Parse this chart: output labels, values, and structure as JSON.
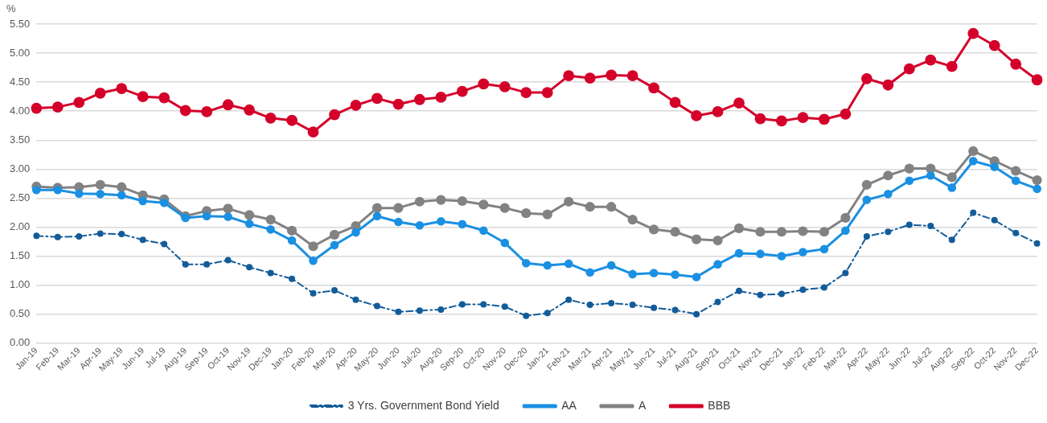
{
  "chart_data": {
    "type": "line",
    "ylabel": "%",
    "categories": [
      "Jan-19",
      "Feb-19",
      "Mar-19",
      "Apr-19",
      "May-19",
      "Jun-19",
      "Jul-19",
      "Aug-19",
      "Sep-19",
      "Oct-19",
      "Nov-19",
      "Dec-19",
      "Jan-20",
      "Feb-20",
      "Mar-20",
      "Apr-20",
      "May-20",
      "Jun-20",
      "Jul-20",
      "Aug-20",
      "Sep-20",
      "Oct-20",
      "Nov-20",
      "Dec-20",
      "Jan-21",
      "Feb-21",
      "Mar-21",
      "Apr-21",
      "May-21",
      "Jun-21",
      "Jul-21",
      "Aug-21",
      "Sep-21",
      "Oct-21",
      "Nov-21",
      "Dec-21",
      "Jan-22",
      "Feb-22",
      "Mar-22",
      "Apr-22",
      "May-22",
      "Jun-22",
      "Jul-22",
      "Aug-22",
      "Sep-22",
      "Oct-22",
      "Nov-22",
      "Dec-22"
    ],
    "series": [
      {
        "name": "3 Yrs. Government Bond Yield",
        "color": "#135c99",
        "line_style": "dashed",
        "values": [
          1.85,
          1.83,
          1.84,
          1.89,
          1.88,
          1.78,
          1.71,
          1.36,
          1.36,
          1.43,
          1.31,
          1.21,
          1.11,
          0.86,
          0.91,
          0.75,
          0.64,
          0.54,
          0.56,
          0.58,
          0.67,
          0.67,
          0.63,
          0.47,
          0.52,
          0.75,
          0.66,
          0.69,
          0.66,
          0.61,
          0.57,
          0.5,
          0.71,
          0.9,
          0.83,
          0.85,
          0.92,
          0.96,
          1.21,
          1.84,
          1.92,
          2.04,
          2.02,
          1.78,
          2.25,
          2.12,
          1.9,
          1.72
        ]
      },
      {
        "name": "AA",
        "color": "#1a90e2",
        "line_style": "solid",
        "values": [
          2.64,
          2.64,
          2.58,
          2.57,
          2.55,
          2.45,
          2.42,
          2.16,
          2.19,
          2.18,
          2.06,
          1.96,
          1.77,
          1.42,
          1.69,
          1.91,
          2.19,
          2.09,
          2.03,
          2.1,
          2.05,
          1.94,
          1.73,
          1.38,
          1.34,
          1.37,
          1.22,
          1.34,
          1.19,
          1.21,
          1.18,
          1.14,
          1.36,
          1.55,
          1.54,
          1.5,
          1.57,
          1.62,
          1.94,
          2.47,
          2.57,
          2.8,
          2.89,
          2.68,
          3.14,
          3.04,
          2.8,
          2.66
        ]
      },
      {
        "name": "A",
        "color": "#828282",
        "line_style": "solid",
        "values": [
          2.7,
          2.68,
          2.69,
          2.73,
          2.69,
          2.55,
          2.48,
          2.19,
          2.28,
          2.32,
          2.21,
          2.13,
          1.94,
          1.67,
          1.87,
          2.02,
          2.33,
          2.33,
          2.44,
          2.47,
          2.45,
          2.39,
          2.33,
          2.24,
          2.22,
          2.44,
          2.35,
          2.35,
          2.13,
          1.96,
          1.92,
          1.79,
          1.77,
          1.98,
          1.92,
          1.92,
          1.93,
          1.92,
          2.16,
          2.73,
          2.89,
          3.01,
          3.01,
          2.86,
          3.31,
          3.14,
          2.97,
          2.81
        ]
      },
      {
        "name": "BBB",
        "color": "#d4002a",
        "line_style": "solid",
        "values": [
          4.05,
          4.07,
          4.15,
          4.31,
          4.39,
          4.25,
          4.23,
          4.01,
          3.99,
          4.11,
          4.02,
          3.88,
          3.84,
          3.64,
          3.94,
          4.1,
          4.22,
          4.12,
          4.2,
          4.24,
          4.34,
          4.47,
          4.42,
          4.32,
          4.32,
          4.61,
          4.57,
          4.62,
          4.61,
          4.4,
          4.15,
          3.92,
          3.99,
          4.14,
          3.87,
          3.83,
          3.89,
          3.86,
          3.95,
          4.56,
          4.45,
          4.73,
          4.88,
          4.77,
          5.34,
          5.13,
          4.81,
          4.54
        ]
      }
    ],
    "ylim": [
      0,
      5.5
    ],
    "yticks": [
      {
        "value": 0,
        "label": "0.00"
      },
      {
        "value": 0.5,
        "label": "0.50"
      },
      {
        "value": 1,
        "label": "1.00"
      },
      {
        "value": 1.5,
        "label": "1.50"
      },
      {
        "value": 2,
        "label": "2.00"
      },
      {
        "value": 2.5,
        "label": "2.50"
      },
      {
        "value": 3,
        "label": "3.00"
      },
      {
        "value": 3.5,
        "label": "3.50"
      },
      {
        "value": 4,
        "label": "4.00"
      },
      {
        "value": 4.5,
        "label": "4.50"
      },
      {
        "value": 5,
        "label": "5.00"
      },
      {
        "value": 5.5,
        "label": "5.50"
      }
    ],
    "grid": "y",
    "legend": "bottom",
    "marker": "circle"
  }
}
